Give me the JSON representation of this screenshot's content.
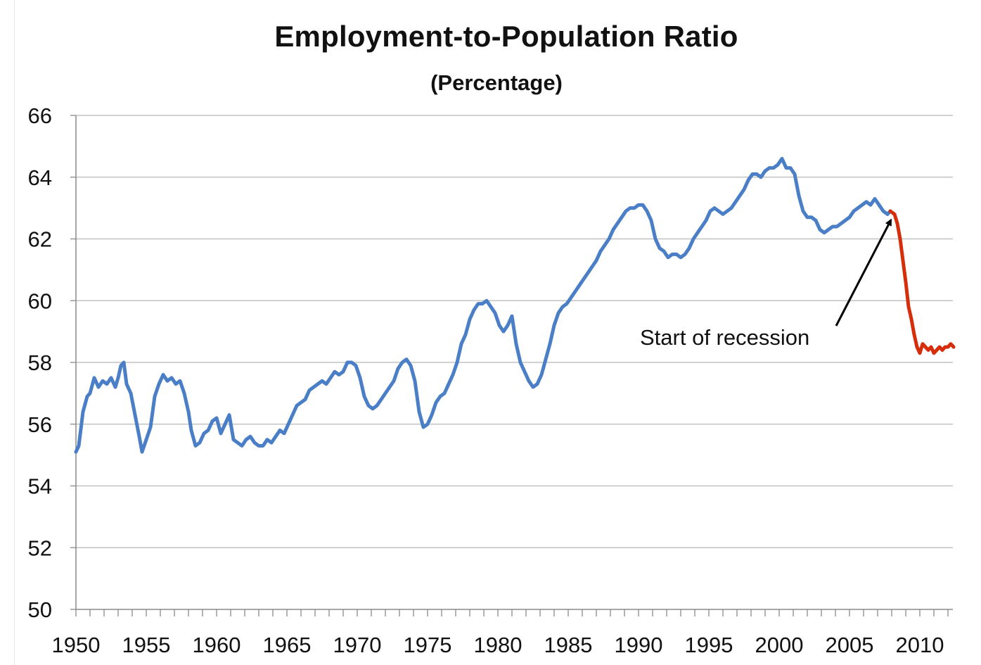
{
  "chart_data": {
    "type": "line",
    "title": "Employment-to-Population Ratio",
    "subtitle": "(Percentage)",
    "xlabel": "",
    "ylabel": "",
    "xlim": [
      1950,
      2012.5
    ],
    "ylim": [
      50,
      66
    ],
    "y_ticks": [
      50,
      52,
      54,
      56,
      58,
      60,
      62,
      64,
      66
    ],
    "x_tick_labels": [
      "1950",
      "1955",
      "1960",
      "1965",
      "1970",
      "1975",
      "1980",
      "1985",
      "1990",
      "1995",
      "2000",
      "2005",
      "2010"
    ],
    "grid": "horizontal",
    "legend": "none",
    "series": [
      {
        "color": "#4a7ec6",
        "x": [
          1950.0,
          1950.2,
          1950.5,
          1950.8,
          1951.0,
          1951.3,
          1951.6,
          1951.9,
          1952.2,
          1952.5,
          1952.8,
          1953.0,
          1953.2,
          1953.4,
          1953.6,
          1953.9,
          1954.2,
          1954.5,
          1954.7,
          1955.0,
          1955.3,
          1955.6,
          1955.9,
          1956.2,
          1956.5,
          1956.8,
          1957.1,
          1957.4,
          1957.7,
          1958.0,
          1958.2,
          1958.5,
          1958.8,
          1959.1,
          1959.4,
          1959.7,
          1960.0,
          1960.3,
          1960.6,
          1960.9,
          1961.2,
          1961.5,
          1961.8,
          1962.1,
          1962.4,
          1962.7,
          1963.0,
          1963.3,
          1963.6,
          1963.9,
          1964.2,
          1964.5,
          1964.8,
          1965.1,
          1965.4,
          1965.7,
          1966.0,
          1966.3,
          1966.6,
          1966.9,
          1967.2,
          1967.5,
          1967.8,
          1968.1,
          1968.4,
          1968.7,
          1969.0,
          1969.3,
          1969.6,
          1969.9,
          1970.2,
          1970.5,
          1970.8,
          1971.1,
          1971.4,
          1971.7,
          1972.0,
          1972.3,
          1972.6,
          1972.9,
          1973.2,
          1973.5,
          1973.8,
          1974.1,
          1974.4,
          1974.7,
          1975.0,
          1975.3,
          1975.6,
          1975.9,
          1976.2,
          1976.5,
          1976.8,
          1977.1,
          1977.4,
          1977.7,
          1978.0,
          1978.3,
          1978.6,
          1978.9,
          1979.2,
          1979.5,
          1979.8,
          1980.1,
          1980.4,
          1980.7,
          1981.0,
          1981.3,
          1981.6,
          1981.9,
          1982.2,
          1982.5,
          1982.8,
          1983.1,
          1983.4,
          1983.7,
          1984.0,
          1984.3,
          1984.6,
          1984.9,
          1985.2,
          1985.5,
          1985.8,
          1986.1,
          1986.4,
          1986.7,
          1987.0,
          1987.3,
          1987.6,
          1987.9,
          1988.2,
          1988.5,
          1988.8,
          1989.1,
          1989.4,
          1989.7,
          1990.0,
          1990.3,
          1990.6,
          1990.9,
          1991.2,
          1991.5,
          1991.8,
          1992.1,
          1992.4,
          1992.7,
          1993.0,
          1993.3,
          1993.6,
          1993.9,
          1994.2,
          1994.5,
          1994.8,
          1995.1,
          1995.4,
          1995.7,
          1996.0,
          1996.3,
          1996.6,
          1996.9,
          1997.2,
          1997.5,
          1997.8,
          1998.1,
          1998.4,
          1998.7,
          1999.0,
          1999.3,
          1999.6,
          1999.9,
          2000.2,
          2000.5,
          2000.8,
          2001.1,
          2001.4,
          2001.7,
          2002.0,
          2002.3,
          2002.6,
          2002.9,
          2003.2,
          2003.5,
          2003.8,
          2004.1,
          2004.4,
          2004.7,
          2005.0,
          2005.3,
          2005.6,
          2005.9,
          2006.2,
          2006.5,
          2006.8,
          2007.1,
          2007.4,
          2007.7,
          2007.9
        ],
        "y": [
          55.1,
          55.3,
          56.4,
          56.9,
          57.0,
          57.5,
          57.2,
          57.4,
          57.3,
          57.5,
          57.2,
          57.5,
          57.9,
          58.0,
          57.3,
          57.0,
          56.3,
          55.6,
          55.1,
          55.5,
          55.9,
          56.9,
          57.3,
          57.6,
          57.4,
          57.5,
          57.3,
          57.4,
          57.0,
          56.4,
          55.8,
          55.3,
          55.4,
          55.7,
          55.8,
          56.1,
          56.2,
          55.7,
          56.0,
          56.3,
          55.5,
          55.4,
          55.3,
          55.5,
          55.6,
          55.4,
          55.3,
          55.3,
          55.5,
          55.4,
          55.6,
          55.8,
          55.7,
          56.0,
          56.3,
          56.6,
          56.7,
          56.8,
          57.1,
          57.2,
          57.3,
          57.4,
          57.3,
          57.5,
          57.7,
          57.6,
          57.7,
          58.0,
          58.0,
          57.9,
          57.5,
          56.9,
          56.6,
          56.5,
          56.6,
          56.8,
          57.0,
          57.2,
          57.4,
          57.8,
          58.0,
          58.1,
          57.9,
          57.4,
          56.4,
          55.9,
          56.0,
          56.3,
          56.7,
          56.9,
          57.0,
          57.3,
          57.6,
          58.0,
          58.6,
          58.9,
          59.4,
          59.7,
          59.9,
          59.9,
          60.0,
          59.8,
          59.6,
          59.2,
          59.0,
          59.2,
          59.5,
          58.6,
          58.0,
          57.7,
          57.4,
          57.2,
          57.3,
          57.6,
          58.1,
          58.6,
          59.2,
          59.6,
          59.8,
          59.9,
          60.1,
          60.3,
          60.5,
          60.7,
          60.9,
          61.1,
          61.3,
          61.6,
          61.8,
          62.0,
          62.3,
          62.5,
          62.7,
          62.9,
          63.0,
          63.0,
          63.1,
          63.1,
          62.9,
          62.6,
          62.0,
          61.7,
          61.6,
          61.4,
          61.5,
          61.5,
          61.4,
          61.5,
          61.7,
          62.0,
          62.2,
          62.4,
          62.6,
          62.9,
          63.0,
          62.9,
          62.8,
          62.9,
          63.0,
          63.2,
          63.4,
          63.6,
          63.9,
          64.1,
          64.1,
          64.0,
          64.2,
          64.3,
          64.3,
          64.4,
          64.6,
          64.3,
          64.3,
          64.1,
          63.4,
          62.9,
          62.7,
          62.7,
          62.6,
          62.3,
          62.2,
          62.3,
          62.4,
          62.4,
          62.5,
          62.6,
          62.7,
          62.9,
          63.0,
          63.1,
          63.2,
          63.1,
          63.3,
          63.1,
          62.9,
          62.8,
          62.9
        ]
      },
      {
        "color": "#d62e0b",
        "x": [
          2007.9,
          2008.2,
          2008.4,
          2008.6,
          2008.8,
          2009.0,
          2009.2,
          2009.4,
          2009.6,
          2009.8,
          2010.0,
          2010.2,
          2010.4,
          2010.6,
          2010.8,
          2011.0,
          2011.2,
          2011.4,
          2011.6,
          2011.8,
          2012.0,
          2012.2,
          2012.4
        ],
        "y": [
          62.9,
          62.8,
          62.5,
          62.0,
          61.3,
          60.6,
          59.8,
          59.4,
          58.9,
          58.5,
          58.3,
          58.6,
          58.5,
          58.4,
          58.5,
          58.3,
          58.4,
          58.5,
          58.4,
          58.5,
          58.5,
          58.6,
          58.5
        ]
      }
    ],
    "annotations": [
      {
        "text": "Start of recession",
        "x": 2004.3,
        "y": 58.8,
        "arrow_to_x": 2007.9,
        "arrow_to_y": 62.8
      }
    ]
  }
}
